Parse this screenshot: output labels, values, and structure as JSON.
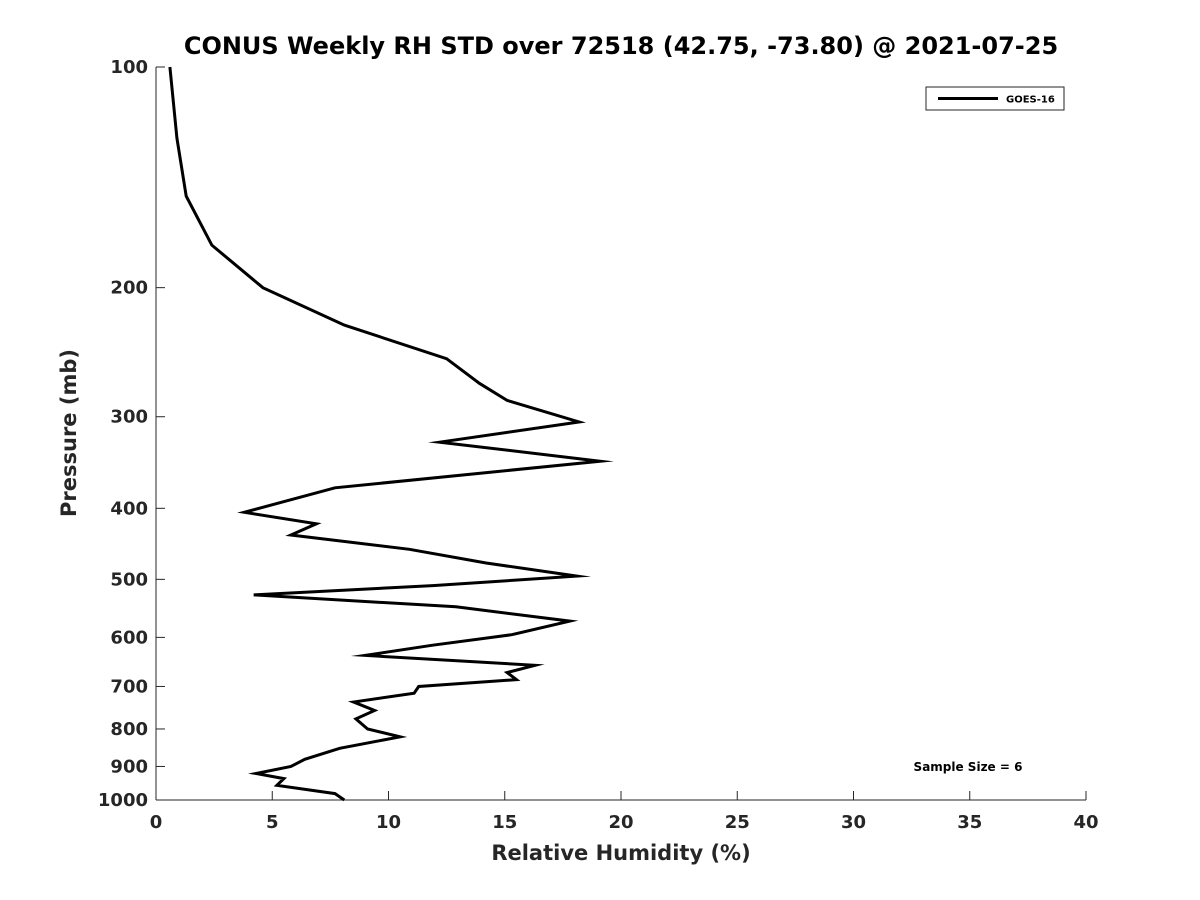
{
  "chart_data": {
    "type": "line",
    "title": "CONUS Weekly RH STD over 72518 (42.75, -73.80) @ 2021-07-25",
    "xlabel": "Relative Humidity (%)",
    "ylabel": "Pressure (mb)",
    "xlim": [
      0,
      40
    ],
    "ylim": [
      100,
      1000
    ],
    "y_scale": "log",
    "y_inverted": true,
    "x_ticks": [
      0,
      5,
      10,
      15,
      20,
      25,
      30,
      35,
      40
    ],
    "y_ticks": [
      100,
      200,
      300,
      400,
      500,
      600,
      700,
      800,
      900,
      1000
    ],
    "grid": false,
    "legend_position": "top-right",
    "series": [
      {
        "name": "GOES-16",
        "color": "#000000",
        "x": [
          0.6,
          0.9,
          1.3,
          2.4,
          4.6,
          8.1,
          12.5,
          13.9,
          15.1,
          18.2,
          12.2,
          19.1,
          7.7,
          3.8,
          6.9,
          5.8,
          10.9,
          14.2,
          18.1,
          11.9,
          4.2,
          12.9,
          17.8,
          15.3,
          11.9,
          9.0,
          16.3,
          15.1,
          15.5,
          11.3,
          11.1,
          8.5,
          9.4,
          8.6,
          9.1,
          10.5,
          7.9,
          6.4,
          5.8,
          4.3,
          5.5,
          5.2,
          7.7,
          8.1
        ],
        "y": [
          100,
          125,
          150,
          175,
          200,
          225,
          250,
          270,
          285,
          305,
          325,
          345,
          375,
          405,
          420,
          435,
          455,
          475,
          495,
          510,
          525,
          545,
          570,
          595,
          615,
          635,
          655,
          670,
          685,
          700,
          715,
          735,
          755,
          775,
          800,
          820,
          850,
          880,
          900,
          920,
          935,
          955,
          980,
          1000
        ]
      }
    ],
    "annotations": [
      {
        "text": "Sample Size = 6",
        "position": "bottom-right"
      }
    ]
  }
}
